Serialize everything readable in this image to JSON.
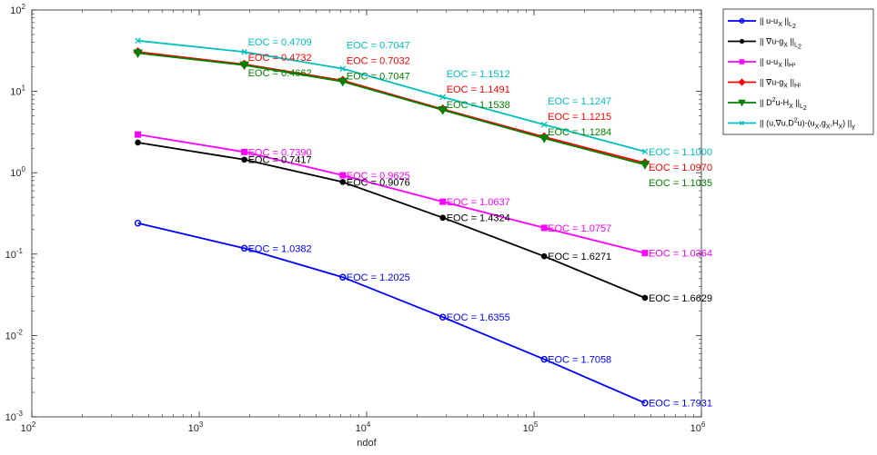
{
  "chart_data": {
    "type": "line",
    "xscale": "log",
    "yscale": "log",
    "xlim": [
      100,
      1000000
    ],
    "ylim": [
      0.001,
      100
    ],
    "xlabel": "ndof",
    "ylabel": "",
    "grid": false,
    "legend_position": "outside-top-right",
    "x_ticks": [
      {
        "base": "10",
        "exp": "2",
        "value": 100
      },
      {
        "base": "10",
        "exp": "3",
        "value": 1000
      },
      {
        "base": "10",
        "exp": "4",
        "value": 10000
      },
      {
        "base": "10",
        "exp": "5",
        "value": 100000
      },
      {
        "base": "10",
        "exp": "6",
        "value": 1000000
      }
    ],
    "y_ticks": [
      {
        "base": "10",
        "exp": "-3",
        "value": 0.001
      },
      {
        "base": "10",
        "exp": "-2",
        "value": 0.01
      },
      {
        "base": "10",
        "exp": "-1",
        "value": 0.1
      },
      {
        "base": "10",
        "exp": "0",
        "value": 1
      },
      {
        "base": "10",
        "exp": "1",
        "value": 10
      },
      {
        "base": "10",
        "exp": "2",
        "value": 100
      }
    ],
    "x": [
      430,
      1860,
      7200,
      28500,
      115000,
      460000
    ],
    "series": [
      {
        "legend_parts": [
          {
            "t": "|| u-u"
          },
          {
            "t": "X",
            "sub": true
          },
          {
            "t": " ||"
          },
          {
            "t": "L",
            "sub": true
          },
          {
            "t": "2",
            "sub2": true
          }
        ],
        "color": "#0000ff",
        "marker": "circle",
        "values": [
          0.24,
          0.118,
          0.052,
          0.0168,
          0.0051,
          0.00148
        ],
        "eoc": [
          "",
          "EOC = 1.0382",
          "EOC = 1.2025",
          "EOC = 1.6355",
          "EOC = 1.7058",
          "EOC = 1.7931"
        ]
      },
      {
        "legend_parts": [
          {
            "t": "|| ∇u-g"
          },
          {
            "t": "X",
            "sub": true
          },
          {
            "t": " ||"
          },
          {
            "t": "L",
            "sub": true
          },
          {
            "t": "2",
            "sub2": true
          }
        ],
        "color": "#000000",
        "marker": "dot",
        "values": [
          2.35,
          1.45,
          0.77,
          0.28,
          0.094,
          0.029
        ],
        "eoc": [
          "",
          "EOC = 0.7417",
          "EOC = 0.9076",
          "EOC = 1.4324",
          "EOC = 1.6271",
          "EOC = 1.6629"
        ]
      },
      {
        "legend_parts": [
          {
            "t": "|| u-u"
          },
          {
            "t": "X",
            "sub": true
          },
          {
            "t": " ||"
          },
          {
            "t": "H¹",
            "sub": true
          }
        ],
        "color": "#ff00ff",
        "marker": "square",
        "values": [
          2.95,
          1.8,
          0.93,
          0.44,
          0.21,
          0.103
        ],
        "eoc": [
          "",
          "EOC = 0.7390",
          "EOC = 0.9625",
          "EOC = 1.0637",
          "EOC = 1.0757",
          "EOC = 1.0364"
        ]
      },
      {
        "legend_parts": [
          {
            "t": "|| ∇u-g"
          },
          {
            "t": "X",
            "sub": true
          },
          {
            "t": " ||"
          },
          {
            "t": "H¹",
            "sub": true
          }
        ],
        "color": "#ff0000",
        "marker": "diamond",
        "values": [
          30.5,
          21.5,
          13.6,
          6.05,
          2.75,
          1.32
        ],
        "eoc": [
          "",
          "EOC = 0.4732",
          "EOC = 0.7032",
          "EOC = 1.1491",
          "EOC = 1.1215",
          "EOC = 1.0970"
        ]
      },
      {
        "legend_parts": [
          {
            "t": "|| D"
          },
          {
            "t": "2",
            "sup": true
          },
          {
            "t": "u-H"
          },
          {
            "t": "X",
            "sub": true
          },
          {
            "t": " ||"
          },
          {
            "t": "L",
            "sub": true
          },
          {
            "t": "2",
            "sub2": true
          }
        ],
        "color": "#008000",
        "marker": "triangle-down",
        "values": [
          29.5,
          21.0,
          13.2,
          5.9,
          2.65,
          1.26
        ],
        "eoc": [
          "",
          "EOC = 0.4662",
          "EOC = 0.7047",
          "EOC = 1.1538",
          "EOC = 1.1284",
          "EOC = 1.1035"
        ]
      },
      {
        "legend_parts": [
          {
            "t": "|| (u,∇u,D"
          },
          {
            "t": "2",
            "sup": true
          },
          {
            "t": "u)-(u"
          },
          {
            "t": "X",
            "sub": true
          },
          {
            "t": ",g"
          },
          {
            "t": "X",
            "sub": true
          },
          {
            "t": ",H"
          },
          {
            "t": "X",
            "sub": true
          },
          {
            "t": ") ||"
          },
          {
            "t": "y",
            "sub": true
          }
        ],
        "color": "#00bfbf",
        "marker": "x",
        "values": [
          42.0,
          30.5,
          19.0,
          8.5,
          3.9,
          1.82
        ],
        "eoc": [
          "",
          "EOC = 0.4709",
          "EOC = 0.7047",
          "EOC = 1.1512",
          "EOC = 1.1247",
          "EOC = 1.1000"
        ]
      }
    ]
  }
}
